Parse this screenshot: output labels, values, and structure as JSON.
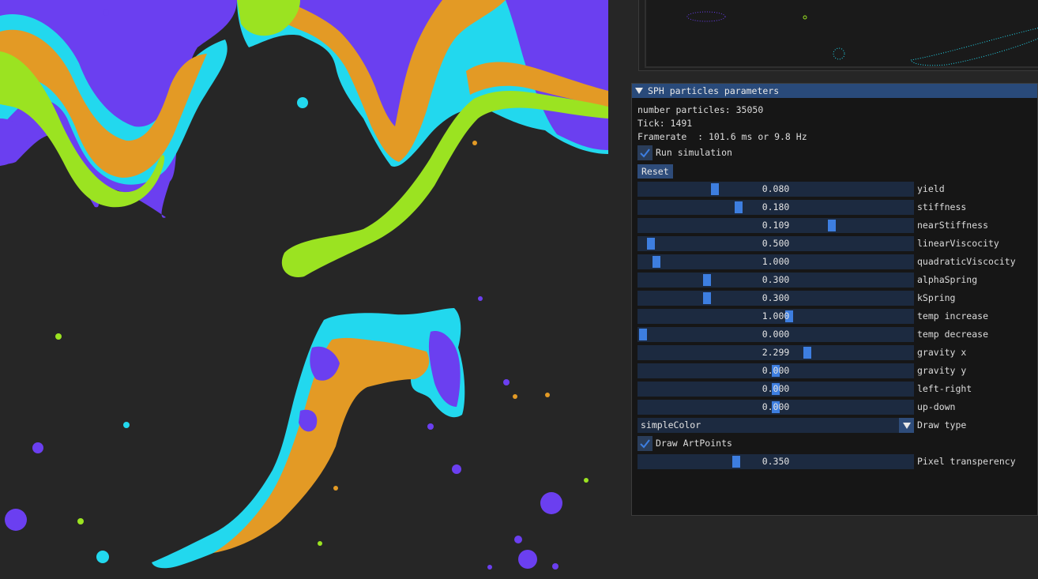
{
  "panel": {
    "title": "SPH particles parameters",
    "info": {
      "particles": "number particles: 35050",
      "tick": "Tick: 1491",
      "framerate": "Framerate  : 101.6 ms or 9.8 Hz"
    },
    "run_simulation": {
      "label": "Run simulation",
      "checked": true
    },
    "reset_label": "Reset",
    "sliders": [
      {
        "label": "yield",
        "value": "0.080",
        "fraction": 0.27
      },
      {
        "label": "stiffness",
        "value": "0.180",
        "fraction": 0.36
      },
      {
        "label": "nearStiffness",
        "value": "0.109",
        "fraction": 0.71
      },
      {
        "label": "linearViscocity",
        "value": "0.500",
        "fraction": 0.03
      },
      {
        "label": "quadraticViscocity",
        "value": "1.000",
        "fraction": 0.05
      },
      {
        "label": "alphaSpring",
        "value": "0.300",
        "fraction": 0.24
      },
      {
        "label": "kSpring",
        "value": "0.300",
        "fraction": 0.24
      },
      {
        "label": "temp increase",
        "value": "1.000",
        "fraction": 0.55
      },
      {
        "label": "temp decrease",
        "value": "0.000",
        "fraction": 0.0
      },
      {
        "label": "gravity x",
        "value": "2.299",
        "fraction": 0.62
      },
      {
        "label": "gravity y",
        "value": "0.000",
        "fraction": 0.5
      },
      {
        "label": "left-right",
        "value": "0.000",
        "fraction": 0.5
      },
      {
        "label": "up-down",
        "value": "0.000",
        "fraction": 0.5
      }
    ],
    "draw_type": {
      "value": "simpleColor",
      "label": "Draw type"
    },
    "draw_artpoints": {
      "label": "Draw ArtPoints",
      "checked": true
    },
    "pixel_transparency": {
      "label": "Pixel transperency",
      "value": "0.350",
      "fraction": 0.35
    }
  },
  "colors": {
    "background": "#262626",
    "purple": "#6b3ff0",
    "cyan": "#22d8ee",
    "orange": "#e39a25",
    "lime": "#9be321",
    "accent": "#3d7ee0",
    "header": "#294a7a"
  }
}
